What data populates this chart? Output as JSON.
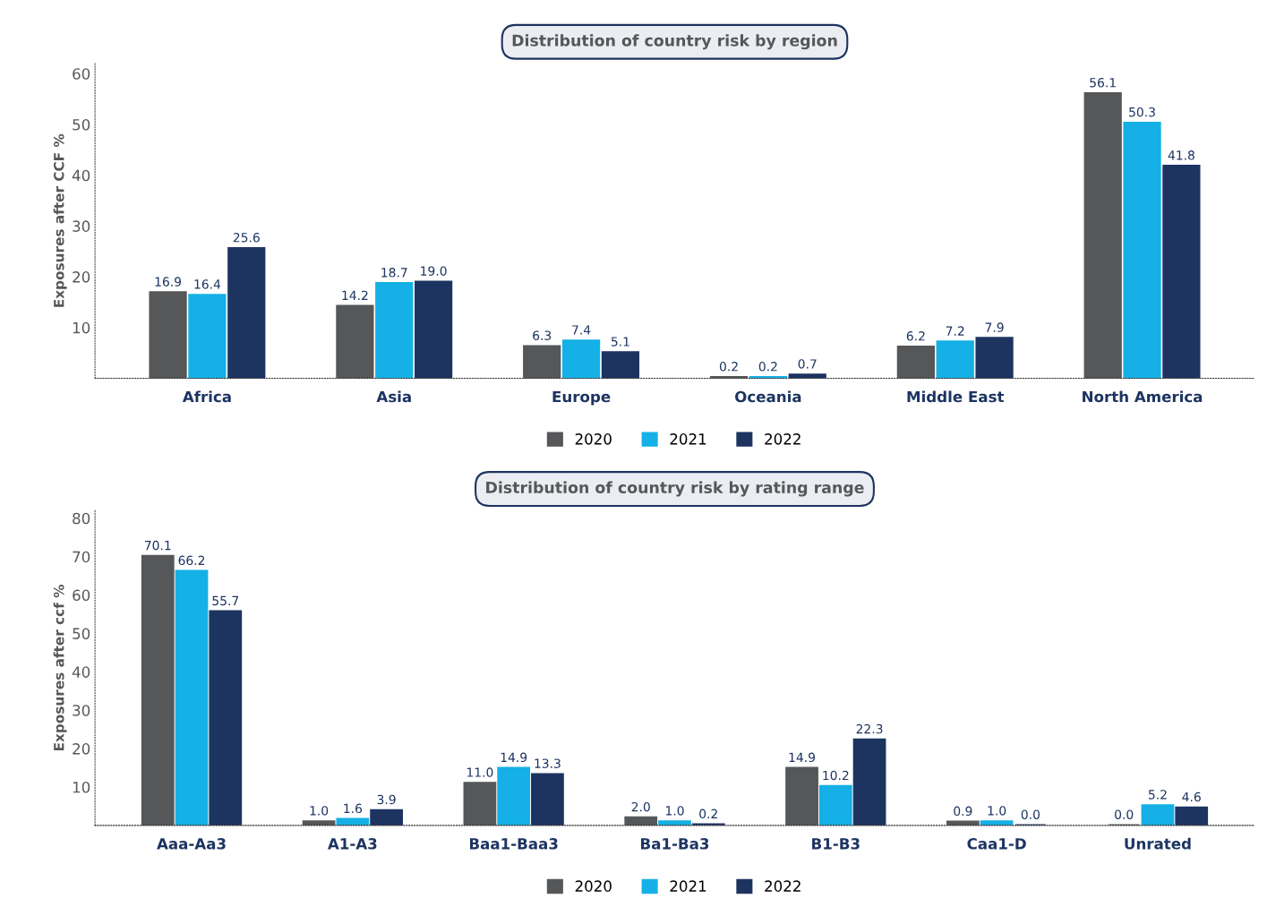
{
  "chart_data": [
    {
      "type": "bar",
      "title": "Distribution of country risk by region",
      "ylabel": "Exposures after CCF %",
      "categories": [
        "Africa",
        "Asia",
        "Europe",
        "Oceania",
        "Middle East",
        "North America"
      ],
      "series": [
        {
          "name": "2020",
          "color": "#555759",
          "values": [
            16.9,
            14.2,
            6.3,
            0.2,
            6.2,
            56.1
          ],
          "value_labels": [
            "16.9",
            "14.2",
            "6.3",
            "0.2",
            "6.2",
            "56.1"
          ]
        },
        {
          "name": "2021",
          "color": "#15b0e5",
          "values": [
            16.4,
            18.7,
            7.4,
            0.2,
            7.2,
            50.3
          ],
          "value_labels": [
            "16.4",
            "18.7",
            "7.4",
            "0.2",
            "7.2",
            "50.3"
          ]
        },
        {
          "name": "2022",
          "color": "#1d3461",
          "values": [
            25.6,
            19,
            5.1,
            0.7,
            7.9,
            41.8
          ],
          "value_labels": [
            "25.6",
            "19.0",
            "5.1",
            "0.7",
            "7.9",
            "41.8"
          ]
        }
      ],
      "ylim": [
        0,
        62
      ],
      "yticks": [
        10,
        20,
        30,
        40,
        50,
        60
      ],
      "grid": false,
      "legend": "bottom"
    },
    {
      "type": "bar",
      "title": "Distribution of country risk by rating range",
      "ylabel": "Exposures after ccf %",
      "categories": [
        "Aaa-Aa3",
        "A1-A3",
        "Baa1-Baa3",
        "Ba1-Ba3",
        "B1-B3",
        "Caa1-D",
        "Unrated"
      ],
      "series": [
        {
          "name": "2020",
          "color": "#555759",
          "values": [
            70.1,
            1,
            11,
            2,
            14.9,
            0.9,
            0
          ],
          "value_labels": [
            "70.1",
            "1.0",
            "11.0",
            "2.0",
            "14.9",
            "0.9",
            "0.0"
          ]
        },
        {
          "name": "2021",
          "color": "#15b0e5",
          "values": [
            66.2,
            1.6,
            14.9,
            1,
            10.2,
            1,
            5.2
          ],
          "value_labels": [
            "66.2",
            "1.6",
            "14.9",
            "1.0",
            "10.2",
            "1.0",
            "5.2"
          ]
        },
        {
          "name": "2022",
          "color": "#1d3461",
          "values": [
            55.7,
            3.9,
            13.3,
            0.2,
            22.3,
            0,
            4.6
          ],
          "value_labels": [
            "55.7",
            "3.9",
            "13.3",
            "0.2",
            "22.3",
            "0.0",
            "4.6"
          ]
        }
      ],
      "ylim": [
        0,
        82
      ],
      "yticks": [
        10,
        20,
        30,
        40,
        50,
        60,
        70,
        80
      ],
      "grid": false,
      "legend": "bottom"
    }
  ]
}
